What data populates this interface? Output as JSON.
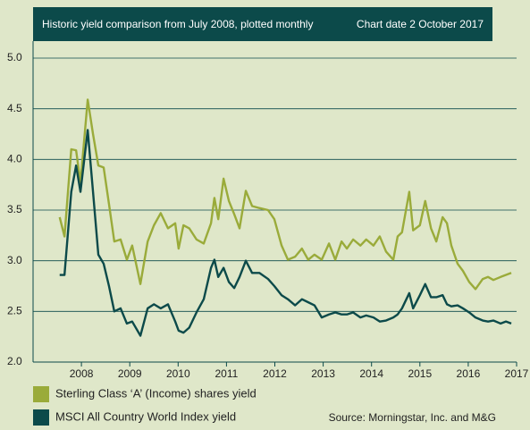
{
  "chart_data": {
    "type": "line",
    "title": "Historic yield comparison from July 2008, plotted monthly",
    "subtitle": "Chart date 2 October 2017",
    "source": "Source: Morningstar, Inc. and M&G",
    "x": [
      2007.55,
      2007.65,
      2007.79,
      2007.89,
      2007.98,
      2008.13,
      2008.24,
      2008.35,
      2008.46,
      2008.57,
      2008.68,
      2008.81,
      2008.94,
      2009.05,
      2009.22,
      2009.37,
      2009.5,
      2009.64,
      2009.79,
      2009.94,
      2010.01,
      2010.11,
      2010.23,
      2010.38,
      2010.53,
      2010.68,
      2010.75,
      2010.83,
      2010.94,
      2011.05,
      2011.16,
      2011.27,
      2011.4,
      2011.53,
      2011.68,
      2011.86,
      2011.99,
      2012.14,
      2012.27,
      2012.42,
      2012.56,
      2012.69,
      2012.82,
      2012.97,
      2013.12,
      2013.25,
      2013.38,
      2013.49,
      2013.62,
      2013.77,
      2013.89,
      2014.04,
      2014.17,
      2014.3,
      2014.45,
      2014.54,
      2014.63,
      2014.78,
      2014.86,
      2015.0,
      2015.11,
      2015.23,
      2015.34,
      2015.47,
      2015.56,
      2015.65,
      2015.78,
      2015.89,
      2016.02,
      2016.15,
      2016.3,
      2016.41,
      2016.52,
      2016.67,
      2016.78,
      2016.89
    ],
    "series": [
      {
        "name": "Sterling Class ‘A’ (Income) shares yield",
        "color": "#9aab3a",
        "values": [
          3.43,
          3.24,
          4.1,
          4.09,
          3.77,
          4.59,
          4.25,
          3.94,
          3.92,
          3.56,
          3.19,
          3.21,
          3.01,
          3.15,
          2.77,
          3.19,
          3.35,
          3.47,
          3.32,
          3.37,
          3.12,
          3.35,
          3.32,
          3.21,
          3.17,
          3.37,
          3.62,
          3.41,
          3.81,
          3.59,
          3.46,
          3.32,
          3.69,
          3.54,
          3.52,
          3.5,
          3.41,
          3.15,
          3.01,
          3.04,
          3.12,
          3.01,
          3.06,
          3.01,
          3.17,
          3.01,
          3.19,
          3.12,
          3.21,
          3.15,
          3.21,
          3.15,
          3.24,
          3.09,
          3.01,
          3.24,
          3.28,
          3.68,
          3.3,
          3.35,
          3.59,
          3.32,
          3.19,
          3.43,
          3.37,
          3.15,
          2.97,
          2.9,
          2.79,
          2.72,
          2.82,
          2.84,
          2.81,
          2.84,
          2.86,
          2.88
        ]
      },
      {
        "name": "MSCI All Country World Index yield",
        "color": "#0c4a4a",
        "values": [
          2.86,
          2.86,
          3.68,
          3.94,
          3.68,
          4.29,
          3.68,
          3.06,
          2.97,
          2.75,
          2.5,
          2.53,
          2.38,
          2.4,
          2.26,
          2.53,
          2.57,
          2.53,
          2.57,
          2.4,
          2.31,
          2.29,
          2.34,
          2.49,
          2.62,
          2.93,
          3.01,
          2.84,
          2.93,
          2.79,
          2.73,
          2.84,
          3.0,
          2.88,
          2.88,
          2.82,
          2.75,
          2.66,
          2.62,
          2.56,
          2.62,
          2.59,
          2.56,
          2.44,
          2.47,
          2.49,
          2.47,
          2.47,
          2.49,
          2.44,
          2.46,
          2.44,
          2.4,
          2.41,
          2.44,
          2.47,
          2.53,
          2.68,
          2.53,
          2.66,
          2.77,
          2.64,
          2.64,
          2.66,
          2.57,
          2.55,
          2.56,
          2.53,
          2.49,
          2.44,
          2.41,
          2.4,
          2.41,
          2.38,
          2.4,
          2.38
        ]
      }
    ],
    "xlim": [
      2007,
      2017
    ],
    "xticks": [
      2008,
      2009,
      2010,
      2011,
      2012,
      2013,
      2014,
      2015,
      2016,
      2017
    ],
    "ylim": [
      2,
      5
    ],
    "yticks": [
      {
        "value": 2,
        "label": "2.0"
      },
      2.5,
      {
        "value": 3,
        "label": "3.0"
      },
      3.5,
      {
        "value": 4,
        "label": "4.0"
      },
      4.5,
      {
        "value": 5,
        "label": "5.0"
      }
    ],
    "grid": true
  }
}
